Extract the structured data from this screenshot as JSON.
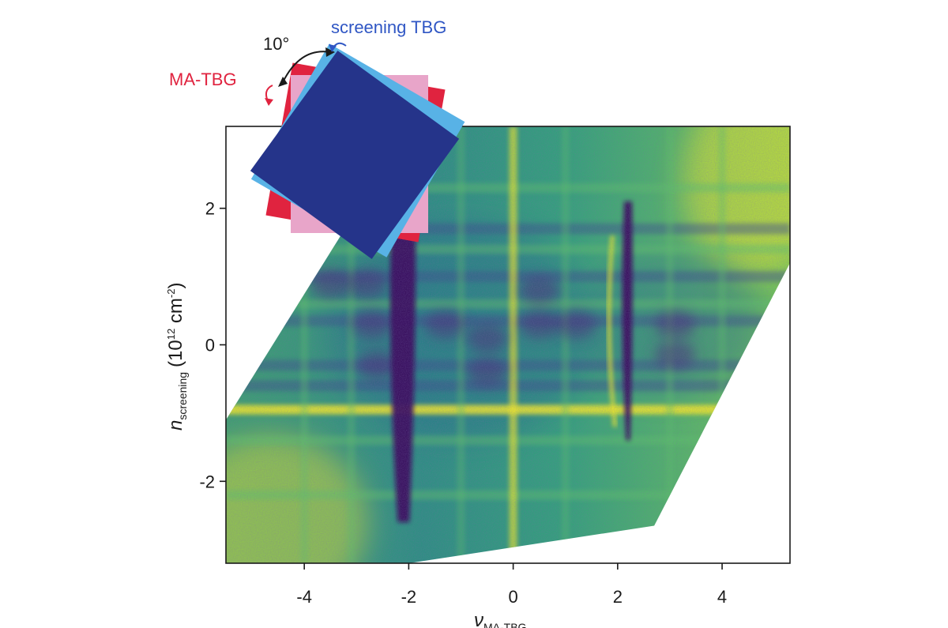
{
  "chart_data": {
    "type": "heatmap",
    "title": "",
    "x_axis": {
      "label_main": "ν",
      "label_sub": "MA-TBG",
      "range": [
        -5.5,
        5.3
      ],
      "ticks": [
        -4,
        -2,
        0,
        2,
        4
      ],
      "tick_labels": [
        "-4",
        "-2",
        "0",
        "2",
        "4"
      ]
    },
    "y_axis": {
      "label_main": "n",
      "label_sub": "screening",
      "label_unit_prefix": "(10",
      "label_unit_sup1": "12",
      "label_unit_mid": " cm",
      "label_unit_sup2": "-2",
      "label_unit_suffix": ")",
      "range": [
        -3.2,
        3.2
      ],
      "ticks": [
        -2,
        0,
        2
      ],
      "tick_labels": [
        "-2",
        "0",
        "2"
      ]
    },
    "data_region_corners": [
      [
        -5.5,
        -1.1
      ],
      [
        -2.0,
        3.2
      ],
      [
        5.3,
        3.2
      ],
      [
        5.3,
        1.2
      ],
      [
        2.7,
        -2.65
      ],
      [
        -2.0,
        -3.2
      ],
      [
        -5.5,
        -3.2
      ]
    ],
    "colormap": "viridis",
    "features": [
      {
        "name": "dark vertical line",
        "x": -2.1,
        "y_range": [
          -2.6,
          2.3
        ]
      },
      {
        "name": "dark vertical line",
        "x": 2.2,
        "y_range": [
          -1.4,
          2.1
        ]
      },
      {
        "name": "bright vertical line",
        "x": 0.0,
        "y_range": [
          -3.2,
          3.2
        ]
      },
      {
        "name": "bright horizontal band",
        "y": -0.95,
        "x_range": [
          -5.2,
          4.0
        ]
      }
    ],
    "inset": {
      "angle_label": "10°",
      "label_ma_tbg": "MA-TBG",
      "label_screening_tbg": "screening TBG"
    },
    "colors": {
      "red": "#e0233f",
      "pink": "#e8a5c9",
      "light_blue": "#58b2e6",
      "dark_blue": "#25348a",
      "viridis_dark": "#3a0b5e",
      "viridis_mid": "#2c7f8a",
      "viridis_green": "#5ec26a",
      "viridis_yellow": "#f2ea2a"
    }
  }
}
